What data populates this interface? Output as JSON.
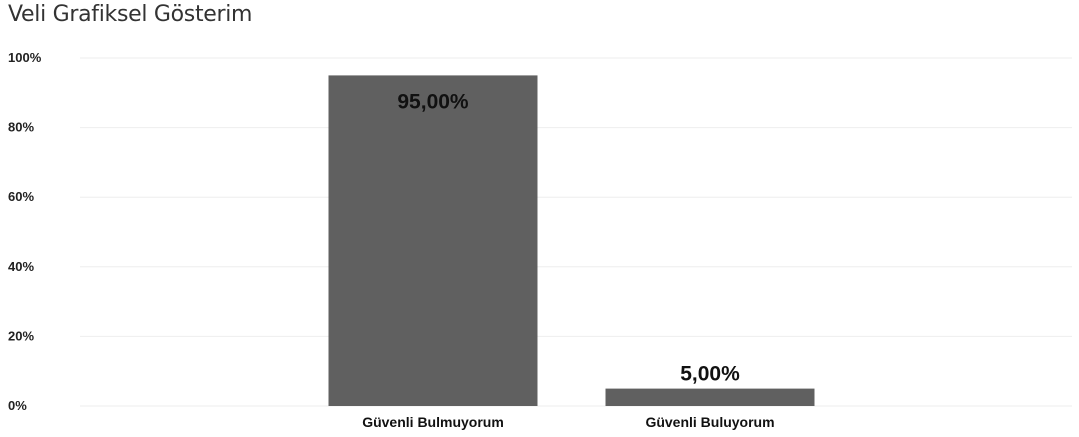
{
  "page": {
    "title": "Veli Grafiksel Gösterim"
  },
  "chart_data": {
    "type": "bar",
    "title": "",
    "xlabel": "",
    "ylabel": "",
    "categories": [
      "Güvenli Bulmuyorum",
      "Güvenli Buluyorum"
    ],
    "values": [
      95,
      5
    ],
    "data_labels": [
      "95,00%",
      "5,00%"
    ],
    "ylim": [
      0,
      100
    ],
    "yticks": [
      0,
      20,
      40,
      60,
      80,
      100
    ],
    "ytick_labels": [
      "0%",
      "20%",
      "40%",
      "60%",
      "80%",
      "100%"
    ],
    "grid": true,
    "bar_color": "#606060",
    "grid_color": "#eeeeee"
  }
}
